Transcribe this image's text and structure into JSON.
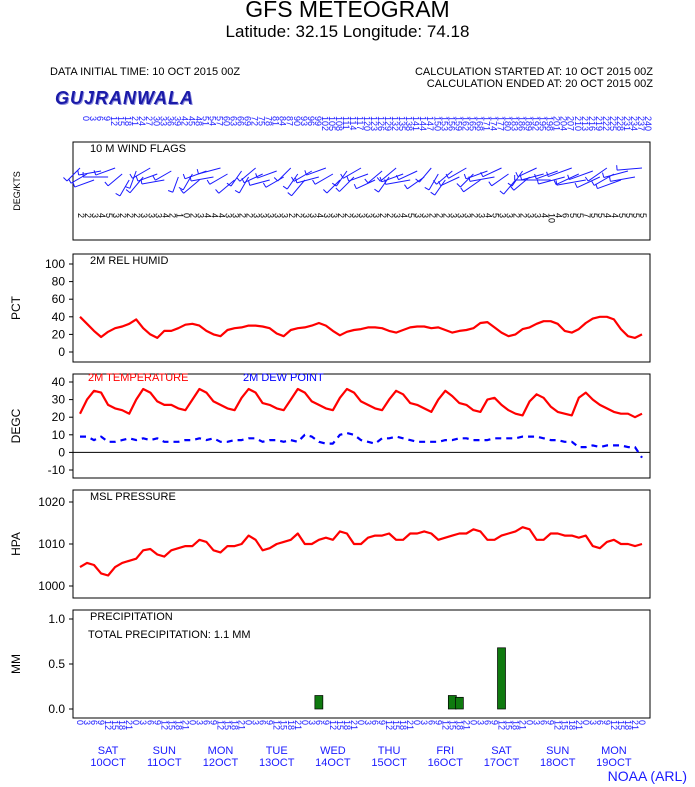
{
  "header": {
    "title": "GFS METEOGRAM",
    "subtitle": "Latitude: 32.15 Longitude:  74.18",
    "initial_time": "DATA INITIAL TIME: 10 OCT 2015 00Z",
    "calc_started": "CALCULATION STARTED AT: 10 OCT 2015 00Z",
    "calc_ended": "CALCULATION ENDED AT: 20 OCT 2015 00Z",
    "station": "GUJRANWALA"
  },
  "footer": {
    "credit": "NOAA (ARL)"
  },
  "time_axis": {
    "hours": [
      "0",
      "3",
      "6",
      "9",
      "12",
      "15",
      "18",
      "21",
      "0",
      "3",
      "6",
      "9",
      "12",
      "15",
      "18",
      "21",
      "0",
      "3",
      "6",
      "9",
      "12",
      "15",
      "18",
      "21",
      "0",
      "3",
      "6",
      "9",
      "12",
      "15",
      "18",
      "21",
      "0",
      "3",
      "6",
      "9",
      "12",
      "15",
      "18",
      "21",
      "0",
      "3",
      "6",
      "9",
      "12",
      "15",
      "18",
      "21",
      "0",
      "3",
      "6",
      "9",
      "12",
      "15",
      "18",
      "21",
      "0",
      "3",
      "6",
      "9",
      "12",
      "15",
      "18",
      "21",
      "0",
      "3",
      "6",
      "9",
      "12",
      "15",
      "18",
      "21",
      "0",
      "3",
      "6",
      "9",
      "12",
      "15",
      "18",
      "21",
      "0"
    ],
    "top_labels": [
      "0",
      "3",
      "6",
      "9",
      "12",
      "15",
      "18",
      "21",
      "24",
      "27",
      "30",
      "33",
      "36",
      "39",
      "42",
      "45",
      "48",
      "51",
      "54",
      "57",
      "60",
      "63",
      "66",
      "69",
      "72",
      "75",
      "78",
      "81",
      "84",
      "87",
      "90",
      "93",
      "96",
      "99",
      "102",
      "105",
      "108",
      "111",
      "114",
      "117",
      "120",
      "123",
      "126",
      "129",
      "132",
      "135",
      "138",
      "141",
      "144",
      "147",
      "150",
      "153",
      "156",
      "159",
      "162",
      "165",
      "168",
      "171",
      "174",
      "177",
      "180",
      "183",
      "186",
      "189",
      "192",
      "195",
      "198",
      "201",
      "204",
      "207",
      "210",
      "213",
      "216",
      "219",
      "222",
      "225",
      "228",
      "231",
      "234",
      "237",
      "240"
    ],
    "days": [
      {
        "weekday": "SAT",
        "date": "10OCT"
      },
      {
        "weekday": "SUN",
        "date": "11OCT"
      },
      {
        "weekday": "MON",
        "date": "12OCT"
      },
      {
        "weekday": "TUE",
        "date": "13OCT"
      },
      {
        "weekday": "WED",
        "date": "14OCT"
      },
      {
        "weekday": "THU",
        "date": "15OCT"
      },
      {
        "weekday": "FRI",
        "date": "16OCT"
      },
      {
        "weekday": "SAT",
        "date": "17OCT"
      },
      {
        "weekday": "SUN",
        "date": "18OCT"
      },
      {
        "weekday": "MON",
        "date": "19OCT"
      }
    ]
  },
  "chart_data": [
    {
      "type": "line",
      "title": "10 M  WIND FLAGS",
      "ylabel": "DEG/KTS",
      "x_hours_step": 3,
      "speed_kts": [
        "2",
        "2",
        "3",
        "4",
        "5",
        "3",
        "2",
        "2",
        "2",
        "3",
        "3",
        "3",
        "4",
        "2",
        "1",
        "0",
        "2",
        "3",
        "4",
        "4",
        "4",
        "3",
        "3",
        "2",
        "2",
        "3",
        "3",
        "3",
        "3",
        "3",
        "2",
        "2",
        "3",
        "3",
        "4",
        "3",
        "3",
        "2",
        "2",
        "3",
        "3",
        "3",
        "3",
        "2",
        "2",
        "3",
        "4",
        "5",
        "3",
        "3",
        "2",
        "2",
        "2",
        "3",
        "3",
        "3",
        "2",
        "3",
        "4",
        "5",
        "3",
        "3",
        "2",
        "2",
        "3",
        "3",
        "4",
        "10",
        "4",
        "6",
        "5",
        "5",
        "7",
        "5",
        "5",
        "4",
        "4",
        "5",
        "5",
        "5",
        "5"
      ],
      "direction_deg": [
        225,
        240,
        250,
        260,
        270,
        250,
        230,
        210,
        200,
        220,
        240,
        250,
        260,
        240,
        200,
        0,
        210,
        230,
        250,
        260,
        255,
        240,
        230,
        215,
        210,
        230,
        245,
        255,
        250,
        240,
        225,
        215,
        220,
        240,
        255,
        250,
        240,
        225,
        215,
        225,
        240,
        250,
        245,
        230,
        215,
        230,
        250,
        260,
        245,
        235,
        220,
        210,
        215,
        230,
        245,
        240,
        225,
        235,
        250,
        260,
        245,
        235,
        220,
        215,
        230,
        245,
        255,
        270,
        250,
        255,
        250,
        245,
        260,
        250,
        245,
        235,
        240,
        250,
        255,
        260,
        265
      ]
    },
    {
      "type": "line",
      "title": "2M REL HUMID",
      "ylabel": "PCT",
      "ylim": [
        0,
        100
      ],
      "yticks": [
        "0",
        "20",
        "40",
        "60",
        "80",
        "100"
      ],
      "series": [
        {
          "color": "#ff0000",
          "values": [
            40,
            32,
            24,
            17,
            23,
            27,
            29,
            32,
            37,
            27,
            20,
            16,
            24,
            24,
            27,
            31,
            32,
            30,
            24,
            20,
            18,
            25,
            27,
            28,
            30,
            30,
            29,
            27,
            21,
            18,
            25,
            27,
            28,
            30,
            33,
            30,
            24,
            19,
            23,
            25,
            26,
            28,
            28,
            27,
            24,
            22,
            25,
            28,
            29,
            29,
            27,
            28,
            25,
            22,
            24,
            25,
            27,
            33,
            34,
            28,
            22,
            18,
            20,
            26,
            28,
            32,
            35,
            35,
            32,
            24,
            22,
            26,
            33,
            38,
            40,
            40,
            37,
            26,
            18,
            16,
            20
          ]
        }
      ]
    },
    {
      "type": "line",
      "title": "",
      "ylabel": "DEGC",
      "ylim": [
        -10,
        40
      ],
      "yticks": [
        "-10",
        "0",
        "10",
        "20",
        "30",
        "40"
      ],
      "series": [
        {
          "name": "2M TEMPERATURE",
          "color": "#ff0000",
          "dash": false,
          "values": [
            22,
            30,
            35,
            34,
            27,
            25,
            24,
            22,
            30,
            36,
            34,
            29,
            27,
            27,
            25,
            24,
            30,
            36,
            34,
            29,
            27,
            25,
            24,
            31,
            36,
            34,
            28,
            27,
            25,
            24,
            30,
            36,
            34,
            29,
            27,
            25,
            24,
            31,
            36,
            34,
            29,
            27,
            25,
            24,
            30,
            35,
            33,
            28,
            27,
            25,
            23,
            30,
            35,
            32,
            28,
            27,
            24,
            23,
            30,
            31,
            27,
            24,
            22,
            21,
            29,
            33,
            31,
            26,
            23,
            22,
            21,
            31,
            34,
            30,
            27,
            25,
            23,
            22,
            22,
            20,
            22
          ]
        },
        {
          "name": "2M  DEW POINT",
          "color": "#0000ff",
          "dash": true,
          "values": [
            9,
            9,
            7,
            9,
            6,
            6,
            7,
            8,
            7,
            8,
            7,
            8,
            6,
            6,
            6,
            7,
            7,
            8,
            7,
            8,
            6,
            6,
            7,
            7,
            8,
            8,
            6,
            7,
            7,
            6,
            7,
            6,
            10,
            9,
            6,
            5,
            5,
            10,
            11,
            10,
            7,
            6,
            5,
            8,
            8,
            9,
            8,
            7,
            6,
            6,
            6,
            6,
            7,
            7,
            8,
            8,
            7,
            7,
            7,
            8,
            8,
            8,
            8,
            9,
            9,
            9,
            8,
            7,
            7,
            6,
            6,
            3,
            3,
            4,
            3,
            4,
            4,
            4,
            3,
            3,
            -3
          ]
        }
      ]
    },
    {
      "type": "line",
      "title": "MSL PRESSURE",
      "ylabel": "HPA",
      "ylim": [
        1000,
        1020
      ],
      "yticks": [
        "1000",
        "1010",
        "1020"
      ],
      "series": [
        {
          "color": "#ff0000",
          "values": [
            1004.5,
            1005.5,
            1005,
            1003,
            1002.5,
            1004.5,
            1005.5,
            1006,
            1006.5,
            1008.5,
            1008.8,
            1007.5,
            1007,
            1008.5,
            1009,
            1009.5,
            1009.5,
            1011,
            1010.5,
            1008.5,
            1008,
            1009.5,
            1009.5,
            1010,
            1012,
            1011,
            1008.5,
            1009,
            1010,
            1010.5,
            1011,
            1012.5,
            1010,
            1010,
            1011,
            1011.5,
            1011,
            1013,
            1012.5,
            1010,
            1010,
            1011.5,
            1012,
            1012,
            1012.5,
            1011,
            1011,
            1012.5,
            1012.5,
            1013,
            1012.5,
            1011,
            1011.5,
            1012,
            1012.5,
            1012.5,
            1013.5,
            1013,
            1011,
            1011,
            1012,
            1012.5,
            1013,
            1014,
            1013.5,
            1011,
            1011,
            1012.5,
            1012.5,
            1012,
            1012,
            1011.5,
            1012,
            1009.5,
            1009,
            1010.5,
            1011,
            1010,
            1010,
            1009.5,
            1010
          ]
        }
      ]
    },
    {
      "type": "bar",
      "title": "PRECIPITATION",
      "annotation": "TOTAL PRECIPITATION:  1.1 MM",
      "ylabel": "MM",
      "ylim": [
        0,
        1.0
      ],
      "yticks": [
        "0.0",
        "0.5",
        "1.0"
      ],
      "bars": [
        {
          "hour_index": 34,
          "value": 0.15
        },
        {
          "hour_index": 53,
          "value": 0.15
        },
        {
          "hour_index": 54,
          "value": 0.13
        },
        {
          "hour_index": 60,
          "value": 0.68
        }
      ],
      "color": "#0f7a0f"
    }
  ]
}
